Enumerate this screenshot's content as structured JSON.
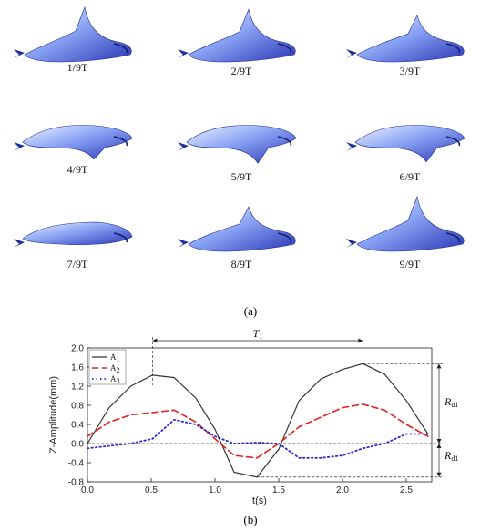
{
  "frames": [
    {
      "label": "1/9T",
      "tip": "up",
      "lift": 1.0
    },
    {
      "label": "2/9T",
      "tip": "up",
      "lift": 0.9
    },
    {
      "label": "3/9T",
      "tip": "up",
      "lift": 0.6
    },
    {
      "label": "4/9T",
      "tip": "down",
      "lift": 0.5
    },
    {
      "label": "5/9T",
      "tip": "down",
      "lift": 0.8
    },
    {
      "label": "6/9T",
      "tip": "down",
      "lift": 0.7
    },
    {
      "label": "7/9T",
      "tip": "flat",
      "lift": 0.2
    },
    {
      "label": "8/9T",
      "tip": "up",
      "lift": 0.5
    },
    {
      "label": "9/9T",
      "tip": "up",
      "lift": 1.0
    }
  ],
  "panel_a_label": "(a)",
  "panel_b_label": "(b)",
  "colors": {
    "ray_light": "#dfe8ff",
    "ray_mid": "#6f8ef0",
    "ray_dark": "#2233a8",
    "A1": "#333333",
    "A2": "#e02020",
    "A3": "#2a2ad0"
  },
  "annotations": {
    "period": "T",
    "period_sub": "1",
    "upper": "R",
    "upper_sub": "u1",
    "lower": "R",
    "lower_sub": "d1"
  },
  "chart_data": {
    "type": "line",
    "title": "",
    "xlabel": "t(s)",
    "ylabel": "Z-Amplitude(mm)",
    "xlim": [
      0.0,
      2.7
    ],
    "ylim": [
      -0.8,
      2.0
    ],
    "xticks": [
      "0.0",
      "0.5",
      "1.0",
      "1.5",
      "2.0",
      "2.5"
    ],
    "yticks": [
      "-0.8",
      "-0.4",
      "0.0",
      "0.4",
      "0.8",
      "1.2",
      "1.6",
      "2.0"
    ],
    "grid": false,
    "legend": "top-left",
    "series": [
      {
        "name": "A",
        "name_sub": "1",
        "style": "solid",
        "x": [
          0.0,
          0.17,
          0.34,
          0.51,
          0.68,
          0.85,
          1.0,
          1.15,
          1.33,
          1.5,
          1.66,
          1.83,
          2.0,
          2.16,
          2.33,
          2.5,
          2.67
        ],
        "y": [
          0.0,
          0.75,
          1.2,
          1.43,
          1.38,
          0.95,
          0.3,
          -0.6,
          -0.7,
          -0.12,
          0.9,
          1.35,
          1.55,
          1.67,
          1.45,
          0.9,
          0.2
        ]
      },
      {
        "name": "A",
        "name_sub": "2",
        "style": "dashed",
        "x": [
          0.0,
          0.17,
          0.34,
          0.51,
          0.68,
          0.85,
          1.0,
          1.15,
          1.33,
          1.5,
          1.66,
          1.83,
          2.0,
          2.16,
          2.33,
          2.5,
          2.67
        ],
        "y": [
          0.15,
          0.45,
          0.6,
          0.65,
          0.7,
          0.45,
          0.1,
          -0.25,
          -0.3,
          0.0,
          0.35,
          0.55,
          0.75,
          0.82,
          0.7,
          0.4,
          0.15
        ]
      },
      {
        "name": "A",
        "name_sub": "3",
        "style": "dotted",
        "x": [
          0.0,
          0.17,
          0.34,
          0.51,
          0.68,
          0.85,
          1.0,
          1.15,
          1.33,
          1.5,
          1.66,
          1.83,
          2.0,
          2.16,
          2.33,
          2.5,
          2.67
        ],
        "y": [
          -0.1,
          -0.05,
          0.0,
          0.1,
          0.5,
          0.4,
          0.15,
          0.0,
          0.02,
          0.0,
          -0.3,
          -0.3,
          -0.25,
          -0.1,
          0.0,
          0.2,
          0.2
        ]
      }
    ]
  }
}
